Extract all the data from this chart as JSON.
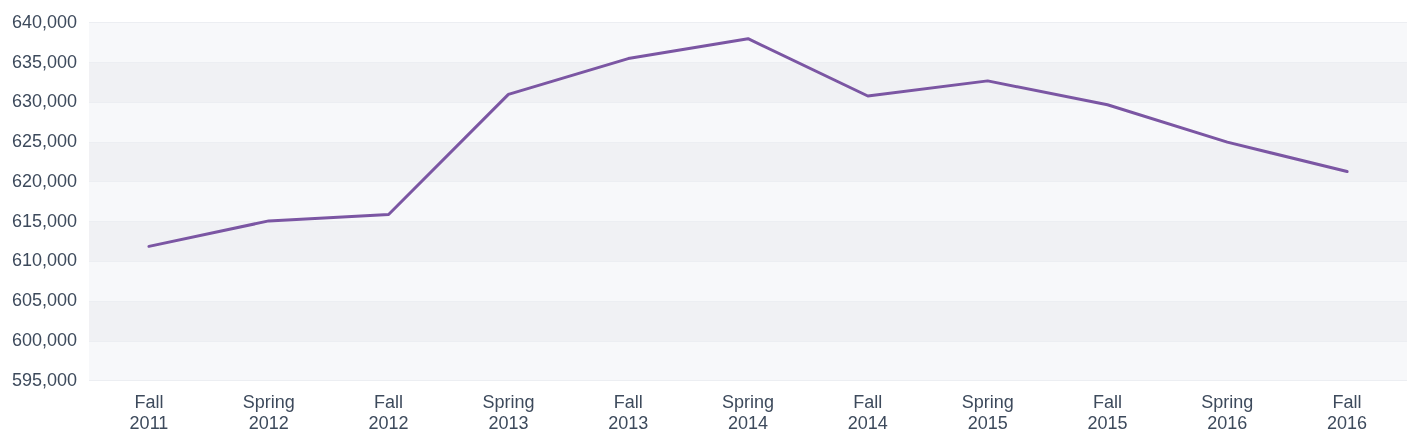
{
  "chart_data": {
    "type": "line",
    "categories": [
      "Fall 2011",
      "Spring 2012",
      "Fall 2012",
      "Spring 2013",
      "Fall 2013",
      "Spring 2014",
      "Fall 2014",
      "Spring 2015",
      "Fall 2015",
      "Spring 2016",
      "Fall 2016"
    ],
    "series": [
      {
        "color": "#7b56a3",
        "values": [
          611900,
          615100,
          615900,
          631000,
          635500,
          638000,
          630800,
          632700,
          629700,
          625000,
          621300
        ]
      }
    ],
    "ylim": [
      595000,
      640000
    ],
    "yticks": [
      {
        "value": 595000,
        "label": "595,000"
      },
      {
        "value": 600000,
        "label": "600,000"
      },
      {
        "value": 605000,
        "label": "605,000"
      },
      {
        "value": 610000,
        "label": "610,000"
      },
      {
        "value": 615000,
        "label": "615,000"
      },
      {
        "value": 620000,
        "label": "620,000"
      },
      {
        "value": 625000,
        "label": "625,000"
      },
      {
        "value": 630000,
        "label": "630,000"
      },
      {
        "value": 635000,
        "label": "635,000"
      },
      {
        "value": 640000,
        "label": "640,000"
      }
    ],
    "grid": "y",
    "legend": false,
    "marker": "none",
    "line_style": "solid"
  }
}
